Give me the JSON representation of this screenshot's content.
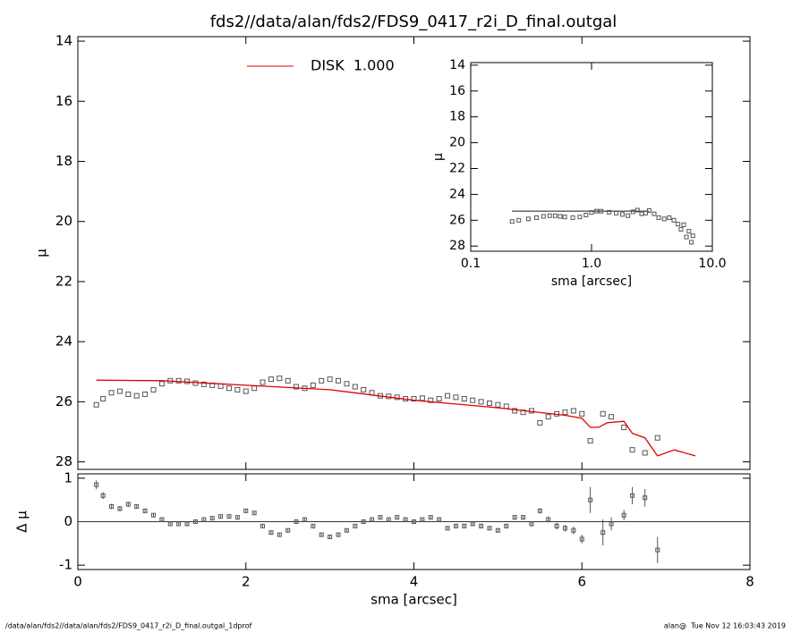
{
  "chart_data": [
    {
      "type": "profile",
      "title": "fds2//data/alan/fds2/FDS9_0417_r2i_D_final.outgal",
      "y_label": "μ",
      "y_reversed": true,
      "xlim": [
        0,
        8
      ],
      "xticks": [
        0,
        2,
        4,
        6,
        8
      ],
      "ylim": [
        13.85,
        28.25
      ],
      "yticks": [
        14,
        16,
        18,
        20,
        22,
        24,
        26,
        28
      ],
      "series": [
        {
          "color": "#555555",
          "mode": "markers",
          "x": [
            0.22,
            0.3,
            0.4,
            0.5,
            0.6,
            0.7,
            0.8,
            0.9,
            1.0,
            1.1,
            1.2,
            1.3,
            1.4,
            1.5,
            1.6,
            1.7,
            1.8,
            1.9,
            2.0,
            2.1,
            2.2,
            2.3,
            2.4,
            2.5,
            2.6,
            2.7,
            2.8,
            2.9,
            3.0,
            3.1,
            3.2,
            3.3,
            3.4,
            3.5,
            3.6,
            3.7,
            3.8,
            3.9,
            4.0,
            4.1,
            4.2,
            4.3,
            4.4,
            4.5,
            4.6,
            4.7,
            4.8,
            4.9,
            5.0,
            5.1,
            5.2,
            5.3,
            5.4,
            5.5,
            5.6,
            5.7,
            5.8,
            5.9,
            6.0,
            6.1,
            6.25,
            6.35,
            6.5,
            6.6,
            6.75,
            6.9
          ],
          "values": [
            26.1,
            25.9,
            25.7,
            25.65,
            25.75,
            25.8,
            25.75,
            25.6,
            25.4,
            25.3,
            25.3,
            25.32,
            25.38,
            25.42,
            25.45,
            25.48,
            25.55,
            25.6,
            25.65,
            25.55,
            25.35,
            25.25,
            25.22,
            25.3,
            25.5,
            25.55,
            25.45,
            25.3,
            25.25,
            25.3,
            25.4,
            25.5,
            25.6,
            25.7,
            25.8,
            25.82,
            25.85,
            25.9,
            25.9,
            25.88,
            25.95,
            25.9,
            25.8,
            25.85,
            25.9,
            25.95,
            26.0,
            26.05,
            26.1,
            26.15,
            26.3,
            26.35,
            26.3,
            26.7,
            26.5,
            26.4,
            26.35,
            26.3,
            26.4,
            27.3,
            26.4,
            26.5,
            26.85,
            27.6,
            27.7,
            27.2
          ]
        },
        {
          "name": "DISK  1.000",
          "color": "#e00000",
          "mode": "line",
          "x": [
            0.22,
            1.0,
            2.0,
            3.0,
            4.0,
            5.0,
            5.8,
            6.0,
            6.1,
            6.2,
            6.3,
            6.5,
            6.6,
            6.75,
            6.9,
            7.1,
            7.35
          ],
          "values": [
            25.28,
            25.3,
            25.45,
            25.6,
            25.95,
            26.2,
            26.45,
            26.55,
            26.85,
            26.85,
            26.7,
            26.65,
            27.05,
            27.2,
            27.8,
            27.6,
            27.8
          ]
        }
      ]
    },
    {
      "type": "residual",
      "x_label": "sma [arcsec]",
      "y_label": "Δ μ",
      "xlim": [
        0,
        8
      ],
      "xticks": [
        0,
        2,
        4,
        6,
        8
      ],
      "ylim": [
        -1.1,
        1.1
      ],
      "yticks": [
        -1,
        0,
        1
      ],
      "reference_line": 0,
      "color": "#555555",
      "x": [
        0.22,
        0.3,
        0.4,
        0.5,
        0.6,
        0.7,
        0.8,
        0.9,
        1.0,
        1.1,
        1.2,
        1.3,
        1.4,
        1.5,
        1.6,
        1.7,
        1.8,
        1.9,
        2.0,
        2.1,
        2.2,
        2.3,
        2.4,
        2.5,
        2.6,
        2.7,
        2.8,
        2.9,
        3.0,
        3.1,
        3.2,
        3.3,
        3.4,
        3.5,
        3.6,
        3.7,
        3.8,
        3.9,
        4.0,
        4.1,
        4.2,
        4.3,
        4.4,
        4.5,
        4.6,
        4.7,
        4.8,
        4.9,
        5.0,
        5.1,
        5.2,
        5.3,
        5.4,
        5.5,
        5.6,
        5.7,
        5.8,
        5.9,
        6.0,
        6.1,
        6.25,
        6.35,
        6.5,
        6.6,
        6.75,
        6.9
      ],
      "values": [
        0.85,
        0.6,
        0.35,
        0.3,
        0.4,
        0.35,
        0.25,
        0.15,
        0.05,
        -0.05,
        -0.05,
        -0.05,
        0.0,
        0.05,
        0.08,
        0.12,
        0.12,
        0.1,
        0.25,
        0.2,
        -0.1,
        -0.25,
        -0.3,
        -0.2,
        0.0,
        0.05,
        -0.1,
        -0.3,
        -0.35,
        -0.3,
        -0.2,
        -0.1,
        0.0,
        0.05,
        0.1,
        0.05,
        0.1,
        0.05,
        0.0,
        0.05,
        0.1,
        0.05,
        -0.15,
        -0.1,
        -0.1,
        -0.05,
        -0.1,
        -0.15,
        -0.2,
        -0.1,
        0.1,
        0.1,
        -0.05,
        0.25,
        0.05,
        -0.1,
        -0.15,
        -0.2,
        -0.4,
        0.5,
        -0.25,
        -0.05,
        0.15,
        0.6,
        0.55,
        -0.65
      ],
      "errors": [
        0.1,
        0.08,
        0.06,
        0.06,
        0.06,
        0.05,
        0.05,
        0.04,
        0.03,
        0.03,
        0.03,
        0.03,
        0.03,
        0.03,
        0.03,
        0.03,
        0.03,
        0.03,
        0.03,
        0.03,
        0.03,
        0.03,
        0.03,
        0.03,
        0.03,
        0.03,
        0.03,
        0.03,
        0.03,
        0.03,
        0.03,
        0.03,
        0.03,
        0.03,
        0.03,
        0.03,
        0.03,
        0.03,
        0.03,
        0.03,
        0.03,
        0.03,
        0.03,
        0.04,
        0.04,
        0.04,
        0.04,
        0.04,
        0.04,
        0.05,
        0.05,
        0.05,
        0.06,
        0.06,
        0.07,
        0.08,
        0.08,
        0.09,
        0.1,
        0.3,
        0.3,
        0.15,
        0.12,
        0.2,
        0.2,
        0.3
      ]
    },
    {
      "type": "profile",
      "x_label": "sma [arcsec]",
      "y_label": "μ",
      "y_reversed": true,
      "x_log": true,
      "xlim": [
        0.1,
        10
      ],
      "xticks": [
        0.1,
        {
          "value": 1,
          "label": "1.0"
        },
        {
          "value": 10,
          "label": "10.0"
        }
      ],
      "ylim": [
        13.8,
        28.4
      ],
      "yticks": [
        14,
        16,
        18,
        20,
        22,
        24,
        26,
        28
      ],
      "series": [
        {
          "color": "#555555",
          "mode": "markers",
          "x": [
            0.22,
            0.25,
            0.3,
            0.35,
            0.4,
            0.45,
            0.5,
            0.55,
            0.6,
            0.7,
            0.8,
            0.9,
            1.0,
            1.1,
            1.2,
            1.4,
            1.6,
            1.8,
            2.0,
            2.2,
            2.4,
            2.6,
            2.8,
            3.0,
            3.3,
            3.6,
            4.0,
            4.4,
            4.8,
            5.2,
            5.5,
            5.8,
            6.1,
            6.4,
            6.7,
            6.9
          ],
          "values": [
            26.1,
            26.0,
            25.9,
            25.8,
            25.7,
            25.65,
            25.65,
            25.7,
            25.75,
            25.8,
            25.75,
            25.6,
            25.4,
            25.3,
            25.3,
            25.38,
            25.45,
            25.55,
            25.65,
            25.35,
            25.22,
            25.5,
            25.45,
            25.25,
            25.5,
            25.8,
            25.9,
            25.8,
            26.0,
            26.3,
            26.7,
            26.35,
            27.3,
            26.85,
            27.7,
            27.2
          ]
        },
        {
          "color": "#555555",
          "mode": "line",
          "x": [
            0.22,
            3.0
          ],
          "values": [
            25.3,
            25.3
          ]
        }
      ]
    }
  ],
  "footer": {
    "left": "/data/alan/fds2//data/alan/fds2/FDS9_0417_r2i_D_final.outgal_1dprof",
    "right": "alan@  Tue Nov 12 16:03:43 2019"
  }
}
